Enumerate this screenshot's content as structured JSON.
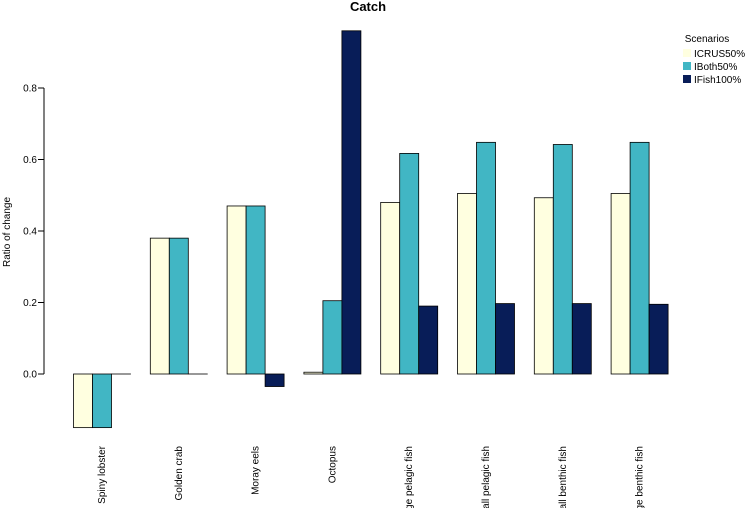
{
  "chart_data": {
    "type": "bar",
    "title": "Catch",
    "ylabel": "Ratio of change",
    "xlabel": "",
    "ylim": [
      -0.17,
      0.97
    ],
    "yticks": [
      0.0,
      0.2,
      0.4,
      0.6,
      0.8
    ],
    "ytick_labels": [
      "0.0",
      "0.2",
      "0.4",
      "0.6",
      "0.8"
    ],
    "categories": [
      "Spiny lobster",
      "Golden crab",
      "Moray eels",
      "Octopus",
      "Large pelagic fish",
      "Small pelagic fish",
      "Small benthic fish",
      "Large benthic fish"
    ],
    "legend": {
      "title": "Scenarios",
      "placement": "top-right"
    },
    "series": [
      {
        "name": "ICRUS50%",
        "color": "#ffffe0",
        "values": [
          -0.15,
          0.38,
          0.47,
          0.005,
          0.48,
          0.505,
          0.493,
          0.505
        ]
      },
      {
        "name": "IBoth50%",
        "color": "#41b6c4",
        "values": [
          -0.15,
          0.38,
          0.47,
          0.205,
          0.617,
          0.648,
          0.642,
          0.648
        ]
      },
      {
        "name": "IFish100%",
        "color": "#081d58",
        "values": [
          0.0,
          0.0,
          -0.035,
          0.96,
          0.19,
          0.197,
          0.197,
          0.195
        ]
      }
    ]
  }
}
